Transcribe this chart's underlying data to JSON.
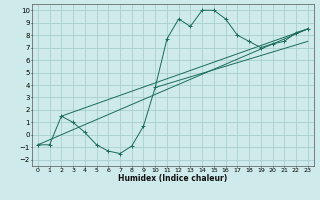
{
  "title": "",
  "xlabel": "Humidex (Indice chaleur)",
  "bg_color": "#ceeaea",
  "grid_color": "#aacfcf",
  "line_color": "#1a6b5a",
  "xlim": [
    -0.5,
    23.5
  ],
  "ylim": [
    -2.5,
    10.5
  ],
  "xticks": [
    0,
    1,
    2,
    3,
    4,
    5,
    6,
    7,
    8,
    9,
    10,
    11,
    12,
    13,
    14,
    15,
    16,
    17,
    18,
    19,
    20,
    21,
    22,
    23
  ],
  "yticks": [
    -2,
    -1,
    0,
    1,
    2,
    3,
    4,
    5,
    6,
    7,
    8,
    9,
    10
  ],
  "curve_x": [
    0,
    1,
    2,
    3,
    4,
    5,
    6,
    7,
    8,
    9,
    10,
    11,
    12,
    13,
    14,
    15,
    16,
    17,
    18,
    19,
    20,
    21,
    22,
    23
  ],
  "curve_y": [
    -0.8,
    -0.8,
    1.5,
    1.0,
    0.2,
    -0.8,
    -1.3,
    -1.5,
    -0.9,
    0.7,
    3.8,
    7.7,
    9.3,
    8.7,
    10.0,
    10.0,
    9.3,
    8.0,
    7.5,
    7.0,
    7.3,
    7.5,
    8.2,
    8.5
  ],
  "line1_x": [
    0,
    23
  ],
  "line1_y": [
    -0.8,
    8.5
  ],
  "line2_x": [
    2,
    23
  ],
  "line2_y": [
    1.5,
    8.5
  ],
  "line3_x": [
    10,
    23
  ],
  "line3_y": [
    3.8,
    7.5
  ]
}
